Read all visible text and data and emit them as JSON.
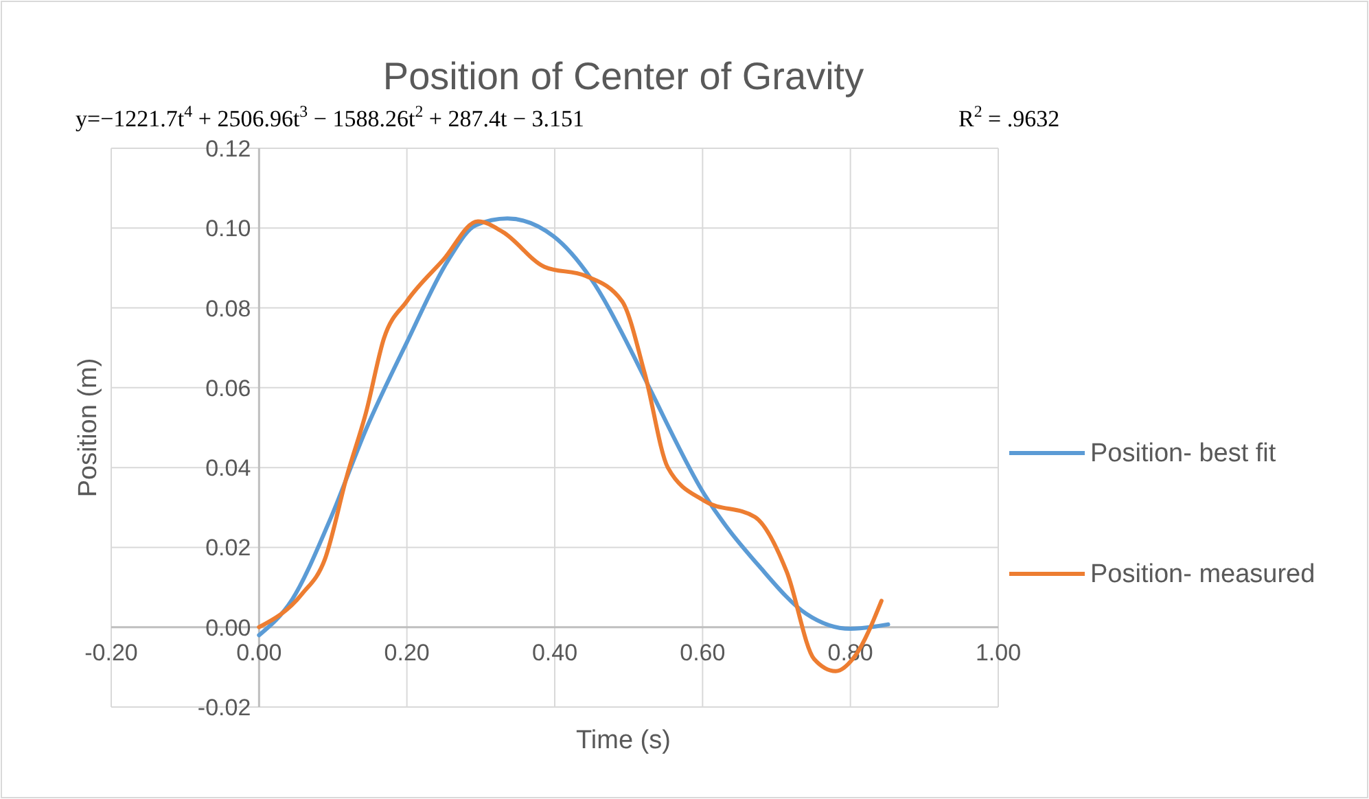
{
  "chart_data": {
    "type": "line",
    "title": "Position of Center of Gravity",
    "xlabel": "Time (s)",
    "ylabel": "Position (m)",
    "annotations": [
      "y=−1221.7t$^{4}$ + 2506.96t$^{3}$ − 1588.26t$^{2}$ + 287.4t − 3.151",
      "R$^{2}$ = .9632"
    ],
    "xlim": [
      -0.2,
      1.0
    ],
    "xticks": [
      {
        "value": -0.2,
        "label": "-0.20"
      },
      {
        "value": 0,
        "label": "0.00"
      },
      {
        "value": 0.2,
        "label": "0.20"
      },
      {
        "value": 0.4,
        "label": "0.40"
      },
      {
        "value": 0.6,
        "label": "0.60"
      },
      {
        "value": 0.8,
        "label": "0.80"
      },
      {
        "value": 1.0,
        "label": "1.00"
      }
    ],
    "ylim": [
      -0.02,
      0.12
    ],
    "yticks": [
      {
        "value": -0.02,
        "label": "-0.02"
      },
      {
        "value": 0,
        "label": "0.00"
      },
      {
        "value": 0.02,
        "label": "0.02"
      },
      {
        "value": 0.04,
        "label": "0.04"
      },
      {
        "value": 0.06,
        "label": "0.06"
      },
      {
        "value": 0.08,
        "label": "0.08"
      },
      {
        "value": 0.1,
        "label": "0.10"
      },
      {
        "value": 0.12,
        "label": "0.12"
      }
    ],
    "grid": true,
    "legend": "right",
    "marker": "none",
    "line_style": "solid",
    "series": [
      {
        "name": "Position- best fit",
        "color": "#5b9bd5",
        "x": [
          0,
          0.045,
          0.095,
          0.145,
          0.2,
          0.256,
          0.293,
          0.336,
          0.398,
          0.448,
          0.504,
          0.528,
          0.602,
          0.677,
          0.74,
          0.8,
          0.851
        ],
        "values": [
          -0.002,
          0.007,
          0.0265,
          0.0497,
          0.0714,
          0.092,
          0.1007,
          0.1024,
          0.098,
          0.0876,
          0.069,
          0.06,
          0.0334,
          0.0152,
          0.0034,
          -0.0004,
          0.0007
        ]
      },
      {
        "name": "Position- measured",
        "color": "#ed7d31",
        "x": [
          0,
          0.058,
          0.089,
          0.119,
          0.145,
          0.169,
          0.2,
          0.249,
          0.296,
          0.33,
          0.386,
          0.442,
          0.491,
          0.522,
          0.553,
          0.602,
          0.671,
          0.714,
          0.751,
          0.78,
          0.807,
          0.842
        ],
        "values": [
          0,
          0.0083,
          0.017,
          0.038,
          0.054,
          0.0724,
          0.0817,
          0.092,
          0.1017,
          0.099,
          0.0903,
          0.088,
          0.0817,
          0.0634,
          0.04,
          0.0317,
          0.0276,
          0.0138,
          -0.008,
          -0.011,
          -0.007,
          0.0066
        ]
      }
    ]
  }
}
